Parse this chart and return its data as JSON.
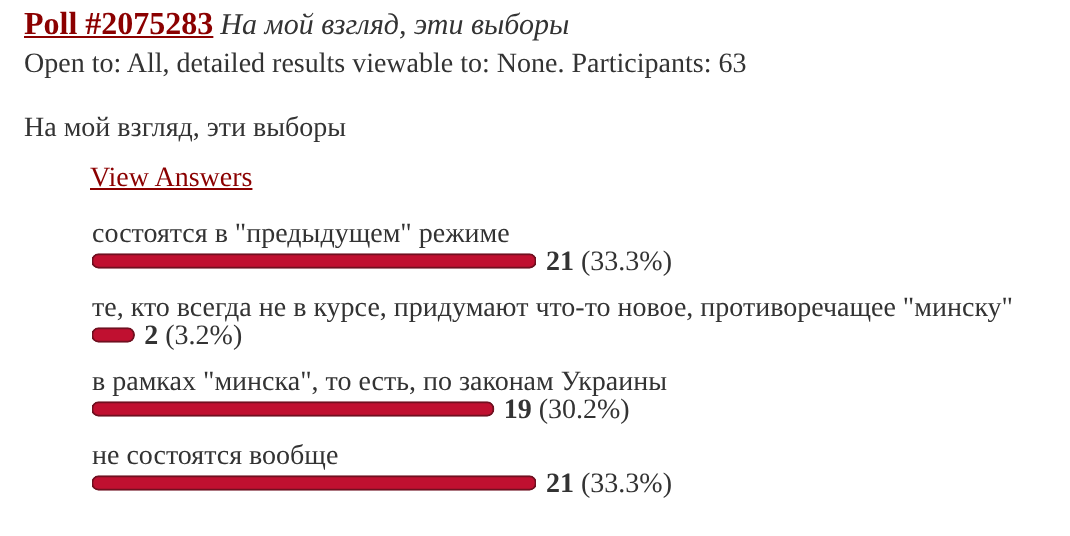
{
  "chart_data": {
    "type": "bar",
    "orientation": "horizontal",
    "title": "Poll #2075283",
    "subtitle": "На мой взгляд, эти выборы",
    "annotations": [
      "Open to: All, detailed results viewable to: None. Participants: 63",
      "На мой взгляд, эти выборы",
      "View Answers"
    ],
    "categories": [
      "состоятся в \"предыдущем\" режиме",
      "те, кто всегда не в курсе, придумают что-то новое, противоречащее \"минску\"",
      "в рамках \"минска\", то есть, по законам Украины",
      "не состоятся вообще"
    ],
    "values": [
      21,
      2,
      19,
      21
    ],
    "value_labels": [
      "21 (33.3%)",
      "2 (3.2%)",
      "19 (30.2%)",
      "21 (33.3%)"
    ],
    "color": "#c01030",
    "legend": false
  }
}
